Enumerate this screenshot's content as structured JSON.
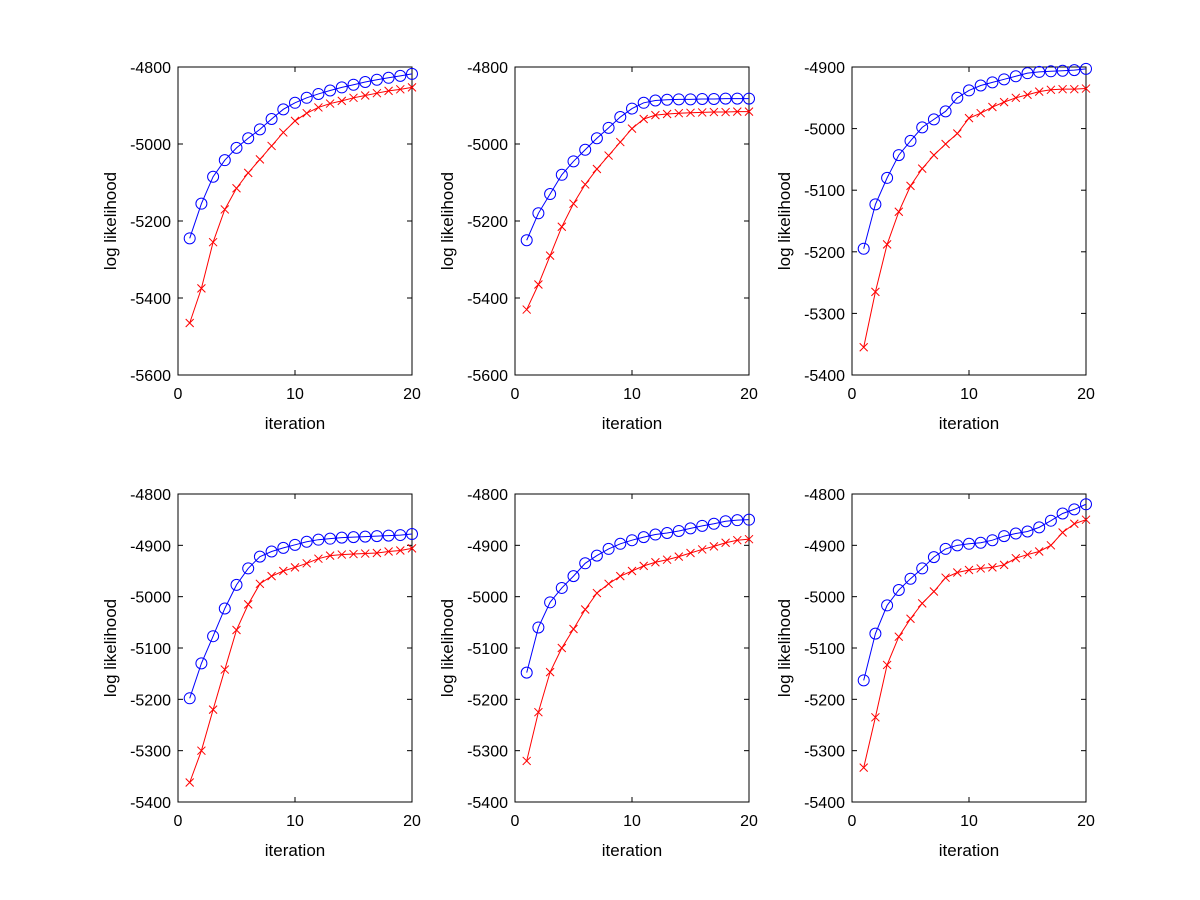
{
  "figure": {
    "background": "#ffffff"
  },
  "series_styles": [
    {
      "marker": "circle",
      "color": "#0000ff"
    },
    {
      "marker": "x",
      "color": "#ff0000"
    }
  ],
  "chart_data": [
    {
      "type": "line",
      "xlabel": "iteration",
      "ylabel": "log likelihood",
      "xlim": [
        0,
        20
      ],
      "ylim": [
        -5600,
        -4800
      ],
      "xticks": [
        0,
        10,
        20
      ],
      "yticks": [
        -5600,
        -5400,
        -5200,
        -5000,
        -4800
      ],
      "x": [
        1,
        2,
        3,
        4,
        5,
        6,
        7,
        8,
        9,
        10,
        11,
        12,
        13,
        14,
        15,
        16,
        17,
        18,
        19,
        20
      ],
      "series": [
        {
          "marker": "circle",
          "color": "#0000ff",
          "values": [
            -5245,
            -5155,
            -5085,
            -5042,
            -5010,
            -4985,
            -4962,
            -4935,
            -4910,
            -4893,
            -4880,
            -4870,
            -4861,
            -4853,
            -4846,
            -4839,
            -4833,
            -4828,
            -4823,
            -4818
          ]
        },
        {
          "marker": "x",
          "color": "#ff0000",
          "values": [
            -5465,
            -5375,
            -5255,
            -5170,
            -5115,
            -5075,
            -5040,
            -5005,
            -4970,
            -4940,
            -4920,
            -4905,
            -4895,
            -4888,
            -4880,
            -4874,
            -4868,
            -4862,
            -4858,
            -4853
          ]
        }
      ]
    },
    {
      "type": "line",
      "xlabel": "iteration",
      "ylabel": "log likelihood",
      "xlim": [
        0,
        20
      ],
      "ylim": [
        -5600,
        -4800
      ],
      "xticks": [
        0,
        10,
        20
      ],
      "yticks": [
        -5600,
        -5400,
        -5200,
        -5000,
        -4800
      ],
      "x": [
        1,
        2,
        3,
        4,
        5,
        6,
        7,
        8,
        9,
        10,
        11,
        12,
        13,
        14,
        15,
        16,
        17,
        18,
        19,
        20
      ],
      "series": [
        {
          "marker": "circle",
          "color": "#0000ff",
          "values": [
            -5250,
            -5180,
            -5130,
            -5080,
            -5045,
            -5015,
            -4985,
            -4958,
            -4930,
            -4908,
            -4893,
            -4887,
            -4885,
            -4884,
            -4884,
            -4883,
            -4883,
            -4882,
            -4882,
            -4882
          ]
        },
        {
          "marker": "x",
          "color": "#ff0000",
          "values": [
            -5430,
            -5365,
            -5290,
            -5215,
            -5155,
            -5105,
            -5065,
            -5030,
            -4995,
            -4960,
            -4935,
            -4925,
            -4922,
            -4920,
            -4919,
            -4918,
            -4917,
            -4917,
            -4916,
            -4916
          ]
        }
      ]
    },
    {
      "type": "line",
      "xlabel": "iteration",
      "ylabel": "log likelihood",
      "xlim": [
        0,
        20
      ],
      "ylim": [
        -5400,
        -4900
      ],
      "xticks": [
        0,
        10,
        20
      ],
      "yticks": [
        -5400,
        -5300,
        -5200,
        -5100,
        -5000,
        -4900
      ],
      "x": [
        1,
        2,
        3,
        4,
        5,
        6,
        7,
        8,
        9,
        10,
        11,
        12,
        13,
        14,
        15,
        16,
        17,
        18,
        19,
        20
      ],
      "series": [
        {
          "marker": "circle",
          "color": "#0000ff",
          "values": [
            -5195,
            -5123,
            -5080,
            -5043,
            -5020,
            -4998,
            -4985,
            -4972,
            -4950,
            -4938,
            -4930,
            -4925,
            -4920,
            -4915,
            -4910,
            -4908,
            -4907,
            -4906,
            -4905,
            -4903
          ]
        },
        {
          "marker": "x",
          "color": "#ff0000",
          "values": [
            -5355,
            -5265,
            -5188,
            -5135,
            -5093,
            -5065,
            -5043,
            -5025,
            -5008,
            -4983,
            -4975,
            -4965,
            -4957,
            -4950,
            -4945,
            -4940,
            -4937,
            -4936,
            -4936,
            -4935
          ]
        }
      ]
    },
    {
      "type": "line",
      "xlabel": "iteration",
      "ylabel": "log likelihood",
      "xlim": [
        0,
        20
      ],
      "ylim": [
        -5400,
        -4800
      ],
      "xticks": [
        0,
        10,
        20
      ],
      "yticks": [
        -5400,
        -5300,
        -5200,
        -5100,
        -5000,
        -4900,
        -4800
      ],
      "x": [
        1,
        2,
        3,
        4,
        5,
        6,
        7,
        8,
        9,
        10,
        11,
        12,
        13,
        14,
        15,
        16,
        17,
        18,
        19,
        20
      ],
      "series": [
        {
          "marker": "circle",
          "color": "#0000ff",
          "values": [
            -5198,
            -5130,
            -5077,
            -5023,
            -4977,
            -4945,
            -4922,
            -4912,
            -4905,
            -4899,
            -4893,
            -4889,
            -4887,
            -4885,
            -4884,
            -4883,
            -4882,
            -4881,
            -4880,
            -4878
          ]
        },
        {
          "marker": "x",
          "color": "#ff0000",
          "values": [
            -5362,
            -5300,
            -5220,
            -5142,
            -5065,
            -5015,
            -4975,
            -4960,
            -4950,
            -4943,
            -4935,
            -4926,
            -4920,
            -4918,
            -4917,
            -4916,
            -4915,
            -4912,
            -4910,
            -4906
          ]
        }
      ]
    },
    {
      "type": "line",
      "xlabel": "iteration",
      "ylabel": "log likelihood",
      "xlim": [
        0,
        20
      ],
      "ylim": [
        -5400,
        -4800
      ],
      "xticks": [
        0,
        10,
        20
      ],
      "yticks": [
        -5400,
        -5300,
        -5200,
        -5100,
        -5000,
        -4900,
        -4800
      ],
      "x": [
        1,
        2,
        3,
        4,
        5,
        6,
        7,
        8,
        9,
        10,
        11,
        12,
        13,
        14,
        15,
        16,
        17,
        18,
        19,
        20
      ],
      "series": [
        {
          "marker": "circle",
          "color": "#0000ff",
          "values": [
            -5148,
            -5060,
            -5011,
            -4983,
            -4960,
            -4935,
            -4920,
            -4907,
            -4897,
            -4890,
            -4884,
            -4879,
            -4876,
            -4872,
            -4867,
            -4862,
            -4858,
            -4853,
            -4851,
            -4850
          ]
        },
        {
          "marker": "x",
          "color": "#ff0000",
          "values": [
            -5320,
            -5225,
            -5147,
            -5100,
            -5063,
            -5025,
            -4993,
            -4975,
            -4960,
            -4950,
            -4940,
            -4933,
            -4928,
            -4922,
            -4915,
            -4908,
            -4902,
            -4895,
            -4890,
            -4888
          ]
        }
      ]
    },
    {
      "type": "line",
      "xlabel": "iteration",
      "ylabel": "log likelihood",
      "xlim": [
        0,
        20
      ],
      "ylim": [
        -5400,
        -4800
      ],
      "xticks": [
        0,
        10,
        20
      ],
      "yticks": [
        -5400,
        -5300,
        -5200,
        -5100,
        -5000,
        -4900,
        -4800
      ],
      "x": [
        1,
        2,
        3,
        4,
        5,
        6,
        7,
        8,
        9,
        10,
        11,
        12,
        13,
        14,
        15,
        16,
        17,
        18,
        19,
        20
      ],
      "series": [
        {
          "marker": "circle",
          "color": "#0000ff",
          "values": [
            -5163,
            -5072,
            -5017,
            -4987,
            -4965,
            -4945,
            -4923,
            -4907,
            -4900,
            -4897,
            -4895,
            -4890,
            -4882,
            -4877,
            -4873,
            -4865,
            -4852,
            -4838,
            -4830,
            -4820
          ]
        },
        {
          "marker": "x",
          "color": "#ff0000",
          "values": [
            -5333,
            -5235,
            -5133,
            -5078,
            -5043,
            -5013,
            -4990,
            -4963,
            -4953,
            -4948,
            -4945,
            -4943,
            -4938,
            -4925,
            -4918,
            -4912,
            -4900,
            -4875,
            -4858,
            -4850
          ]
        }
      ]
    }
  ]
}
